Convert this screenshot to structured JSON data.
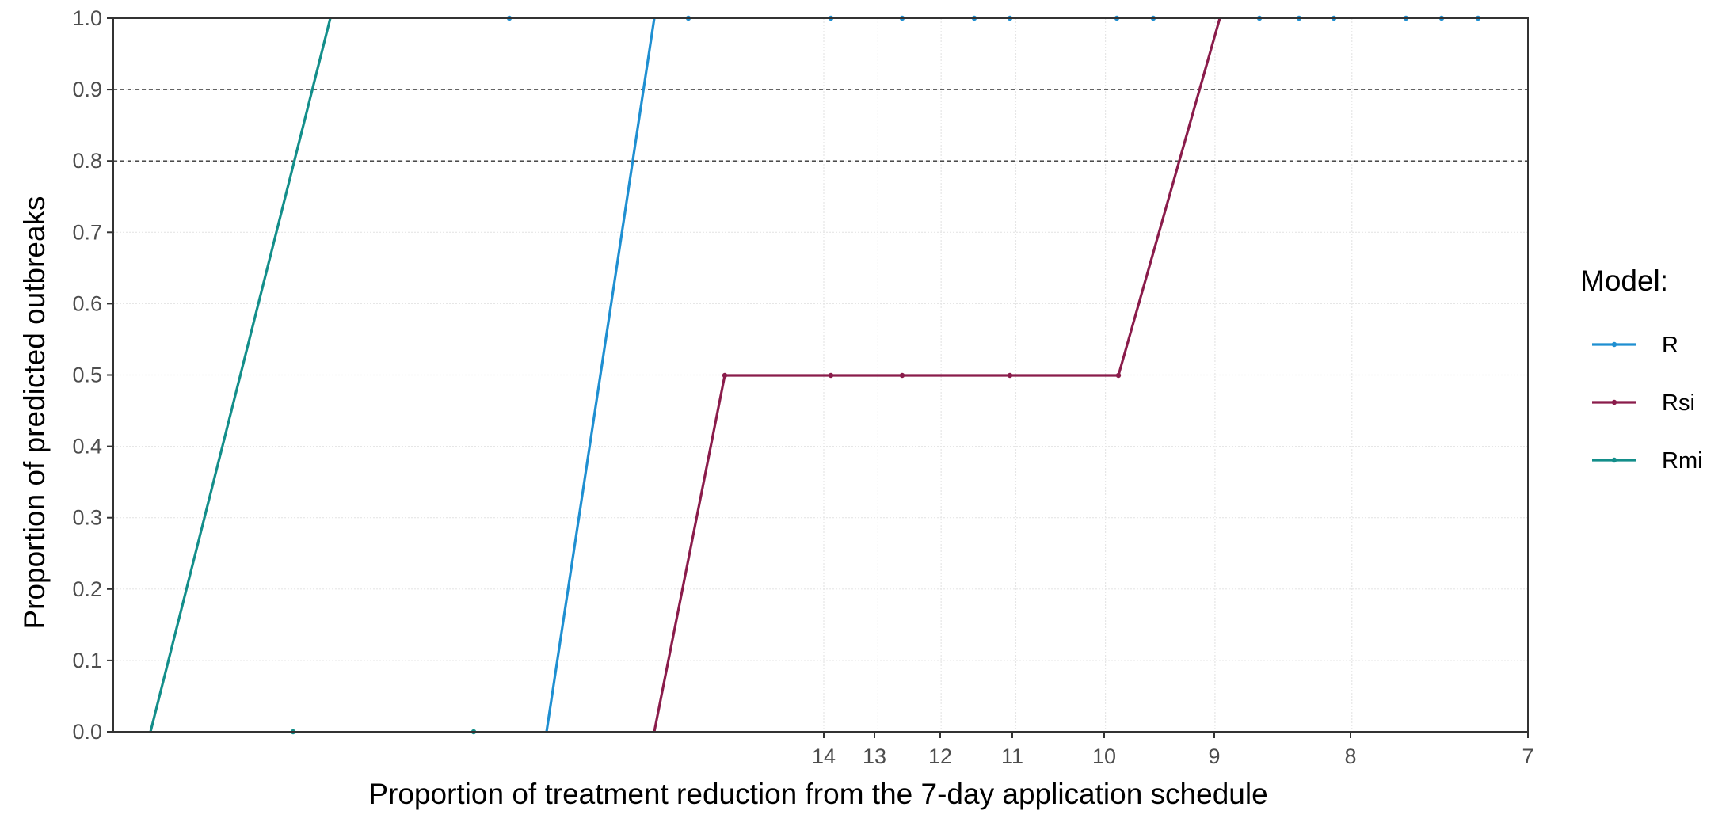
{
  "chart_data": {
    "type": "line",
    "xlabel": "Proportion of treatment reduction from the 7-day application schedule",
    "ylabel": "Proportion of predicted outbreaks",
    "xlim": [
      0.0,
      1.0
    ],
    "ylim": [
      0.0,
      1.0
    ],
    "x_axis_reversed_reciprocal": true,
    "x_ticks": [
      {
        "label": "14",
        "value": 14
      },
      {
        "label": "13",
        "value": 13
      },
      {
        "label": "12",
        "value": 12
      },
      {
        "label": "11",
        "value": 11
      },
      {
        "label": "10",
        "value": 10
      },
      {
        "label": "9",
        "value": 9
      },
      {
        "label": "8",
        "value": 8
      },
      {
        "label": "7",
        "value": 7
      }
    ],
    "y_ticks": [
      "0.0",
      "0.1",
      "0.2",
      "0.3",
      "0.4",
      "0.5",
      "0.6",
      "0.7",
      "0.8",
      "0.9",
      "1.0"
    ],
    "y_tick_values": [
      0.0,
      0.1,
      0.2,
      0.3,
      0.4,
      0.5,
      0.6,
      0.7,
      0.8,
      0.9,
      1.0
    ],
    "reference_lines_y": [
      0.8,
      0.9
    ],
    "grid": true,
    "legend": {
      "title": "Model:",
      "position": "right"
    },
    "series": [
      {
        "name": "R",
        "color": "#1f8fd1",
        "points": [
          {
            "x": 0.4,
            "y": 1.0,
            "marker": true
          },
          {
            "x": 0.6,
            "y": 1.0,
            "marker": true
          },
          {
            "x": 0.7,
            "y": 1.0,
            "marker": true
          }
        ],
        "line": [
          {
            "x": 0.2,
            "y": 0.0
          },
          {
            "x": 0.35,
            "y": 1.0
          }
        ]
      },
      {
        "name": "Rsi",
        "color": "#8a1c4b",
        "points": [
          {
            "x": 0.45,
            "y": 0.5,
            "marker": true
          },
          {
            "x": 0.5,
            "y": 0.5,
            "marker": true
          },
          {
            "x": 0.55,
            "y": 0.5,
            "marker": true
          },
          {
            "x": 0.6,
            "y": 0.5,
            "marker": true
          }
        ],
        "line": [
          {
            "x": 0.0,
            "y": 0.0
          },
          {
            "x": 0.45,
            "y": 0.5
          },
          {
            "x": 0.6,
            "y": 0.5
          },
          {
            "x": 0.75,
            "y": 1.0
          }
        ]
      },
      {
        "name": "Rmi",
        "color": "#138e8a",
        "points": [
          {
            "x": 0.25,
            "y": 1.0,
            "marker": true
          },
          {
            "x": 0.85,
            "y": 1.0,
            "marker": true
          }
        ],
        "line": [
          {
            "x": 0.0,
            "y": 0.0
          },
          {
            "x": 0.3,
            "y": 1.0
          }
        ]
      }
    ]
  }
}
